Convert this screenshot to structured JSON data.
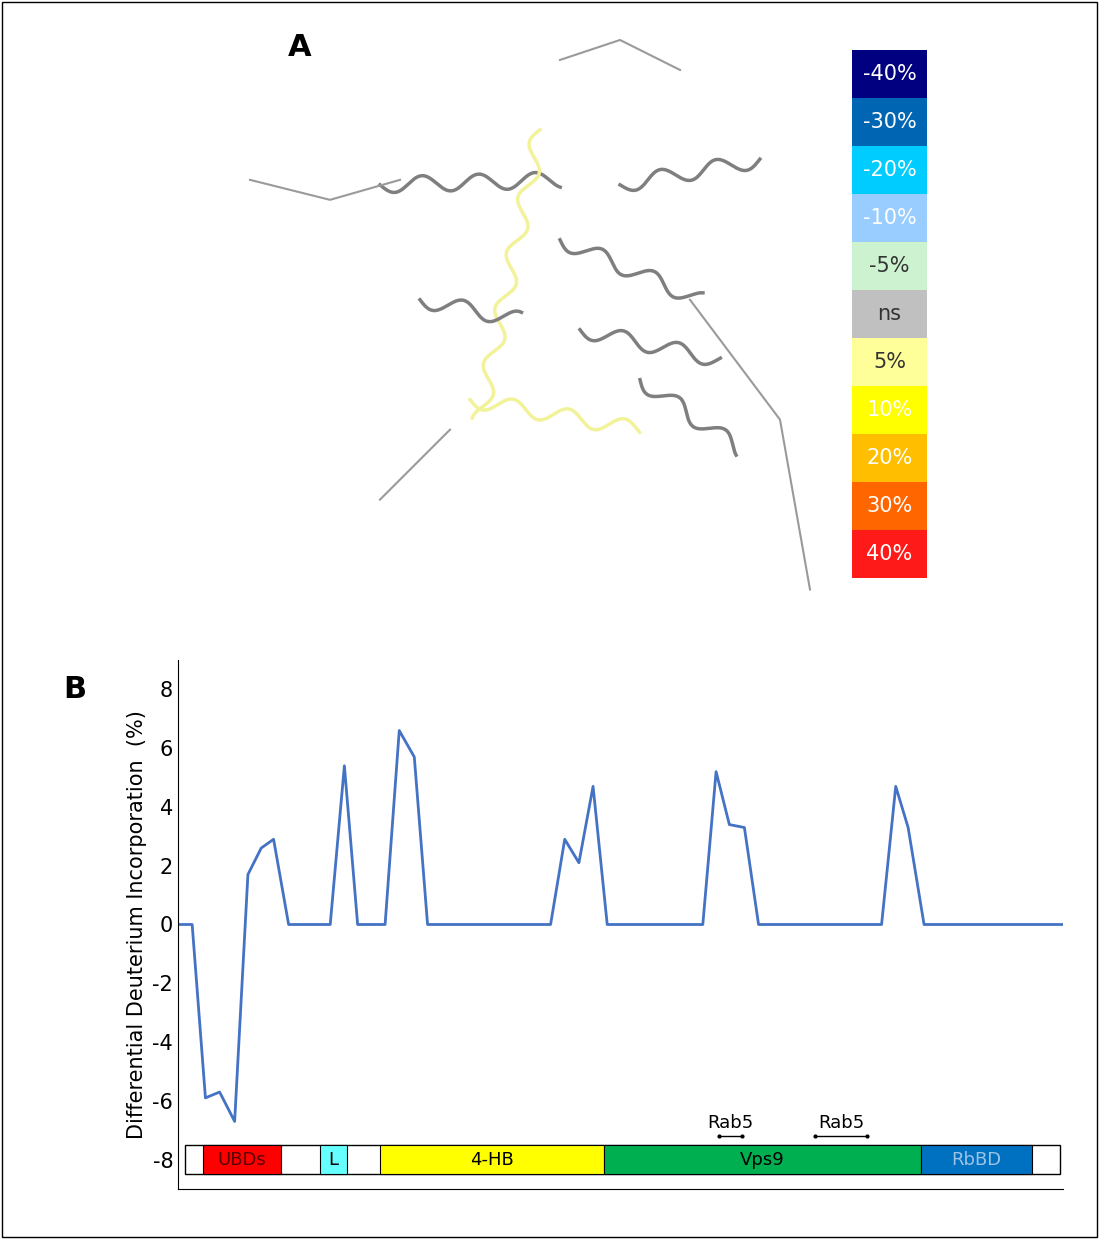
{
  "chart_data": {
    "type": "line",
    "panel_label": "B",
    "ylabel": "Differential Deuterium Incorporation  (%)",
    "x": [
      0,
      1.6,
      3.1,
      4.7,
      6.4,
      7.9,
      9.4,
      10.8,
      12.5,
      17.2,
      18.8,
      20.3,
      23.4,
      25.0,
      26.7,
      28.2,
      42.1,
      43.7,
      45.3,
      46.9,
      48.5,
      59.3,
      60.8,
      62.3,
      64.0,
      65.6,
      79.5,
      81.1,
      82.5,
      84.3,
      100
    ],
    "values": [
      0,
      0,
      -5.9,
      -5.7,
      -6.7,
      1.7,
      2.6,
      2.9,
      0,
      0,
      5.4,
      0,
      0,
      6.6,
      5.7,
      0,
      0,
      2.9,
      2.1,
      4.7,
      0,
      0,
      5.2,
      3.4,
      3.3,
      0,
      0,
      4.7,
      3.3,
      0,
      0
    ],
    "color": "#4472c4",
    "xlim": [
      0,
      100
    ],
    "ylim": [
      -9,
      9
    ],
    "yticks": [
      -8,
      -6,
      -4,
      -2,
      0,
      2,
      4,
      6,
      8
    ],
    "tick_labels": "y",
    "track_y": -8,
    "bar_extent": [
      0.8,
      99.7
    ],
    "domains": [
      {
        "label": "UBDs",
        "start": 2.8,
        "end": 11.6,
        "color": "#ff0000",
        "text_color": "#5a0000"
      },
      {
        "label": "L",
        "start": 16.0,
        "end": 19.1,
        "color": "#66ffff",
        "text_color": "#000000"
      },
      {
        "label": "4-HB",
        "start": 22.8,
        "end": 48.1,
        "color": "#ffff00",
        "text_color": "#000000"
      },
      {
        "label": "Vps9",
        "start": 48.1,
        "end": 84.0,
        "color": "#00b050",
        "text_color": "#000000"
      },
      {
        "label": "RbBD",
        "start": 84.0,
        "end": 96.5,
        "color": "#0070c0",
        "text_color": "#9dc3e6"
      }
    ],
    "markers": [
      {
        "label": "Rab5",
        "start": 61.1,
        "end": 63.7
      },
      {
        "label": "Rab5",
        "start": 72.0,
        "end": 77.9
      }
    ]
  },
  "panel_a": {
    "label": "A",
    "color_scale": [
      {
        "label": "-40%",
        "color": "#000080",
        "text_color": "#ffffff"
      },
      {
        "label": "-30%",
        "color": "#0066b3",
        "text_color": "#ffffff"
      },
      {
        "label": "-20%",
        "color": "#00ccff",
        "text_color": "#ffffff"
      },
      {
        "label": "-10%",
        "color": "#99ccff",
        "text_color": "#ffffff"
      },
      {
        "label": "-5%",
        "color": "#ccf2d0",
        "text_color": "#333333"
      },
      {
        "label": "ns",
        "color": "#c0c0c0",
        "text_color": "#333333"
      },
      {
        "label": "5%",
        "color": "#ffff99",
        "text_color": "#333333"
      },
      {
        "label": "10%",
        "color": "#ffff00",
        "text_color": "#ffffff"
      },
      {
        "label": "20%",
        "color": "#ffbf00",
        "text_color": "#ffffff"
      },
      {
        "label": "30%",
        "color": "#ff6600",
        "text_color": "#ffffff"
      },
      {
        "label": "40%",
        "color": "#ff1a1a",
        "text_color": "#ffffff"
      }
    ]
  }
}
